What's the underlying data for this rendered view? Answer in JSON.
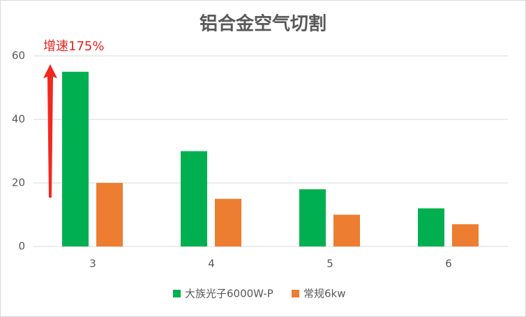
{
  "chart_data": {
    "type": "bar",
    "title": "铝合金空气切割",
    "annotation": "增速175%",
    "categories": [
      "3",
      "4",
      "5",
      "6"
    ],
    "series": [
      {
        "name": "大族光子6000W-P",
        "color": "#00b050",
        "values": [
          55,
          30,
          18,
          12
        ]
      },
      {
        "name": "常规6kw",
        "color": "#ed7d31",
        "values": [
          20,
          15,
          10,
          7
        ]
      }
    ],
    "ylim": [
      0,
      60
    ],
    "yticks": [
      0,
      20,
      40,
      60
    ],
    "grid": true,
    "legend": "bottom"
  }
}
